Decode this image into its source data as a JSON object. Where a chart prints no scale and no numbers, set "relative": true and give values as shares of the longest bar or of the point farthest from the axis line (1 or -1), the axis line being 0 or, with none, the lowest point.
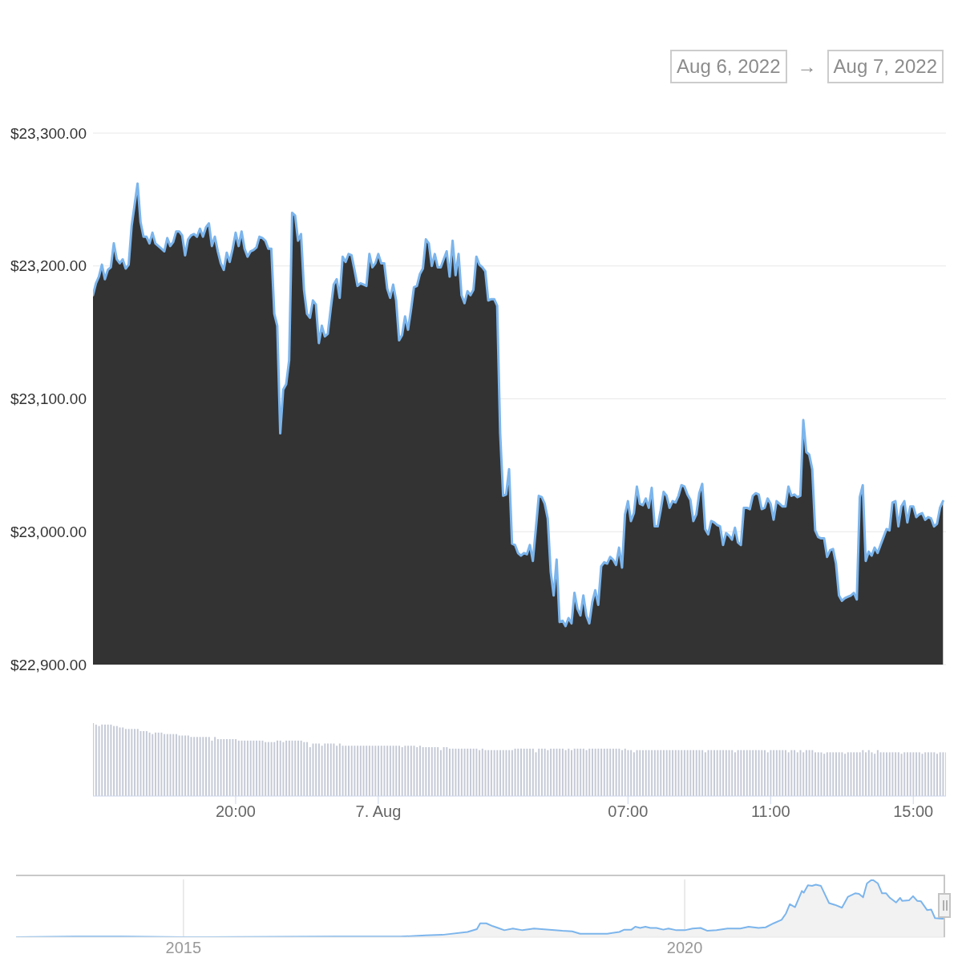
{
  "chart_data": [
    {
      "type": "area",
      "annotations": [
        "Aug 6, 2022",
        "→",
        "Aug 7, 2022"
      ],
      "x": [
        "2022-08-06T16:00",
        "2022-08-06T16:05",
        "2022-08-06T16:10",
        "2022-08-06T16:15",
        "2022-08-06T16:20",
        "2022-08-06T16:25",
        "2022-08-06T16:30",
        "2022-08-06T16:35",
        "2022-08-06T16:40",
        "2022-08-06T16:45",
        "2022-08-06T16:50",
        "2022-08-06T16:55",
        "2022-08-06T17:00",
        "2022-08-06T17:05",
        "2022-08-06T17:10",
        "2022-08-06T17:15",
        "2022-08-06T17:20",
        "2022-08-06T17:25",
        "2022-08-06T17:30",
        "2022-08-06T17:35",
        "2022-08-06T17:40",
        "2022-08-06T17:45",
        "2022-08-06T17:50",
        "2022-08-06T17:55",
        "2022-08-06T18:00",
        "2022-08-06T18:05",
        "2022-08-06T18:10",
        "2022-08-06T18:15",
        "2022-08-06T18:20",
        "2022-08-06T18:25",
        "2022-08-06T18:30",
        "2022-08-06T18:35",
        "2022-08-06T18:40",
        "2022-08-06T18:45",
        "2022-08-06T18:50",
        "2022-08-06T18:55",
        "2022-08-06T19:00",
        "2022-08-06T19:05",
        "2022-08-06T19:10",
        "2022-08-06T19:15",
        "2022-08-06T19:20",
        "2022-08-06T19:25",
        "2022-08-06T19:30",
        "2022-08-06T19:35",
        "2022-08-06T19:40",
        "2022-08-06T19:45",
        "2022-08-06T19:50",
        "2022-08-06T19:55",
        "2022-08-06T20:00",
        "2022-08-06T20:05",
        "2022-08-06T20:10",
        "2022-08-06T20:15",
        "2022-08-06T20:20",
        "2022-08-06T20:25",
        "2022-08-06T20:30",
        "2022-08-06T20:35",
        "2022-08-06T20:40",
        "2022-08-06T20:45",
        "2022-08-06T20:50",
        "2022-08-06T20:55",
        "2022-08-06T21:00",
        "2022-08-06T21:05",
        "2022-08-06T21:10",
        "2022-08-06T21:15",
        "2022-08-06T21:20",
        "2022-08-06T21:25",
        "2022-08-06T21:30",
        "2022-08-06T21:35",
        "2022-08-06T21:40",
        "2022-08-06T21:45",
        "2022-08-06T21:50",
        "2022-08-06T21:55",
        "2022-08-06T22:00",
        "2022-08-06T22:05",
        "2022-08-06T22:10",
        "2022-08-06T22:15",
        "2022-08-06T22:20",
        "2022-08-06T22:25",
        "2022-08-06T22:30",
        "2022-08-06T22:35",
        "2022-08-06T22:40",
        "2022-08-06T22:45",
        "2022-08-06T22:50",
        "2022-08-06T22:55",
        "2022-08-06T23:00",
        "2022-08-06T23:05",
        "2022-08-06T23:10",
        "2022-08-06T23:15",
        "2022-08-06T23:20",
        "2022-08-06T23:25",
        "2022-08-06T23:30",
        "2022-08-06T23:35",
        "2022-08-06T23:40",
        "2022-08-06T23:45",
        "2022-08-06T23:50",
        "2022-08-06T23:55",
        "2022-08-07T00:00",
        "2022-08-07T00:05",
        "2022-08-07T00:10",
        "2022-08-07T00:15",
        "2022-08-07T00:20",
        "2022-08-07T00:25",
        "2022-08-07T00:30",
        "2022-08-07T00:35",
        "2022-08-07T00:40",
        "2022-08-07T00:45",
        "2022-08-07T00:50",
        "2022-08-07T00:55",
        "2022-08-07T01:00",
        "2022-08-07T01:05",
        "2022-08-07T01:10",
        "2022-08-07T01:15",
        "2022-08-07T01:20",
        "2022-08-07T01:25",
        "2022-08-07T01:30",
        "2022-08-07T01:35",
        "2022-08-07T01:40",
        "2022-08-07T01:45",
        "2022-08-07T01:50",
        "2022-08-07T01:55",
        "2022-08-07T02:00",
        "2022-08-07T02:05",
        "2022-08-07T02:10",
        "2022-08-07T02:15",
        "2022-08-07T02:20",
        "2022-08-07T02:25",
        "2022-08-07T02:30",
        "2022-08-07T02:35",
        "2022-08-07T02:40",
        "2022-08-07T02:45",
        "2022-08-07T02:50",
        "2022-08-07T02:55",
        "2022-08-07T03:00",
        "2022-08-07T03:05",
        "2022-08-07T03:10",
        "2022-08-07T03:15",
        "2022-08-07T03:20",
        "2022-08-07T03:25",
        "2022-08-07T03:30",
        "2022-08-07T03:35",
        "2022-08-07T03:40",
        "2022-08-07T03:45",
        "2022-08-07T03:50",
        "2022-08-07T03:55",
        "2022-08-07T04:00",
        "2022-08-07T04:05",
        "2022-08-07T04:10",
        "2022-08-07T04:15",
        "2022-08-07T04:20",
        "2022-08-07T04:25",
        "2022-08-07T04:30",
        "2022-08-07T04:35",
        "2022-08-07T04:40",
        "2022-08-07T04:45",
        "2022-08-07T04:50",
        "2022-08-07T04:55",
        "2022-08-07T05:00",
        "2022-08-07T05:05",
        "2022-08-07T05:10",
        "2022-08-07T05:15",
        "2022-08-07T05:20",
        "2022-08-07T05:25",
        "2022-08-07T05:30",
        "2022-08-07T05:35",
        "2022-08-07T05:40",
        "2022-08-07T05:45",
        "2022-08-07T05:50",
        "2022-08-07T05:55",
        "2022-08-07T06:00",
        "2022-08-07T06:05",
        "2022-08-07T06:10",
        "2022-08-07T06:15",
        "2022-08-07T06:20",
        "2022-08-07T06:25",
        "2022-08-07T06:30",
        "2022-08-07T06:35",
        "2022-08-07T06:40",
        "2022-08-07T06:45",
        "2022-08-07T06:50",
        "2022-08-07T06:55",
        "2022-08-07T07:00",
        "2022-08-07T07:05",
        "2022-08-07T07:10",
        "2022-08-07T07:15",
        "2022-08-07T07:20",
        "2022-08-07T07:25",
        "2022-08-07T07:30",
        "2022-08-07T07:35",
        "2022-08-07T07:40",
        "2022-08-07T07:45",
        "2022-08-07T07:50",
        "2022-08-07T07:55",
        "2022-08-07T08:00",
        "2022-08-07T08:05",
        "2022-08-07T08:10",
        "2022-08-07T08:15",
        "2022-08-07T08:20",
        "2022-08-07T08:25",
        "2022-08-07T08:30",
        "2022-08-07T08:35",
        "2022-08-07T08:40",
        "2022-08-07T08:45",
        "2022-08-07T08:50",
        "2022-08-07T08:55",
        "2022-08-07T09:00",
        "2022-08-07T09:05",
        "2022-08-07T09:10",
        "2022-08-07T09:15",
        "2022-08-07T09:20",
        "2022-08-07T09:25",
        "2022-08-07T09:30",
        "2022-08-07T09:35",
        "2022-08-07T09:40",
        "2022-08-07T09:45",
        "2022-08-07T09:50",
        "2022-08-07T09:55",
        "2022-08-07T10:00",
        "2022-08-07T10:05",
        "2022-08-07T10:10",
        "2022-08-07T10:15",
        "2022-08-07T10:20",
        "2022-08-07T10:25",
        "2022-08-07T10:30",
        "2022-08-07T10:35",
        "2022-08-07T10:40",
        "2022-08-07T10:45",
        "2022-08-07T10:50",
        "2022-08-07T10:55",
        "2022-08-07T11:00",
        "2022-08-07T11:05",
        "2022-08-07T11:10",
        "2022-08-07T11:15",
        "2022-08-07T11:20",
        "2022-08-07T11:25",
        "2022-08-07T11:30",
        "2022-08-07T11:35",
        "2022-08-07T11:40",
        "2022-08-07T11:45",
        "2022-08-07T11:50",
        "2022-08-07T11:55",
        "2022-08-07T12:00",
        "2022-08-07T12:05",
        "2022-08-07T12:10",
        "2022-08-07T12:15",
        "2022-08-07T12:20",
        "2022-08-07T12:25",
        "2022-08-07T12:30",
        "2022-08-07T12:35",
        "2022-08-07T12:40",
        "2022-08-07T12:45",
        "2022-08-07T12:50",
        "2022-08-07T12:55",
        "2022-08-07T13:00",
        "2022-08-07T13:05",
        "2022-08-07T13:10",
        "2022-08-07T13:15",
        "2022-08-07T13:20",
        "2022-08-07T13:25",
        "2022-08-07T13:30",
        "2022-08-07T13:35",
        "2022-08-07T13:40",
        "2022-08-07T13:45",
        "2022-08-07T13:50",
        "2022-08-07T13:55",
        "2022-08-07T14:00",
        "2022-08-07T14:05",
        "2022-08-07T14:10",
        "2022-08-07T14:15",
        "2022-08-07T14:20",
        "2022-08-07T14:25",
        "2022-08-07T14:30",
        "2022-08-07T14:35",
        "2022-08-07T14:40",
        "2022-08-07T14:45",
        "2022-08-07T14:50",
        "2022-08-07T14:55",
        "2022-08-07T15:00",
        "2022-08-07T15:05",
        "2022-08-07T15:10",
        "2022-08-07T15:15",
        "2022-08-07T15:20",
        "2022-08-07T15:25",
        "2022-08-07T15:30",
        "2022-08-07T15:35",
        "2022-08-07T15:40",
        "2022-08-07T15:45",
        "2022-08-07T15:50"
      ],
      "values": [
        23178,
        23187,
        23192,
        23201,
        23190,
        23197,
        23199,
        23217,
        23205,
        23202,
        23205,
        23198,
        23201,
        23230,
        23246,
        23262,
        23233,
        23222,
        23222,
        23217,
        23225,
        23217,
        23215,
        23213,
        23211,
        23221,
        23215,
        23218,
        23226,
        23226,
        23223,
        23208,
        23220,
        23223,
        23224,
        23222,
        23228,
        23222,
        23229,
        23232,
        23215,
        23222,
        23211,
        23202,
        23197,
        23210,
        23203,
        23213,
        23225,
        23215,
        23226,
        23213,
        23207,
        23211,
        23212,
        23214,
        23222,
        23221,
        23219,
        23213,
        23213,
        23164,
        23155,
        23074,
        23107,
        23111,
        23129,
        23240,
        23238,
        23219,
        23224,
        23182,
        23164,
        23161,
        23174,
        23171,
        23142,
        23155,
        23147,
        23149,
        23168,
        23186,
        23190,
        23176,
        23207,
        23203,
        23209,
        23208,
        23197,
        23185,
        23187,
        23186,
        23185,
        23209,
        23199,
        23202,
        23209,
        23202,
        23202,
        23183,
        23176,
        23186,
        23174,
        23144,
        23148,
        23162,
        23152,
        23167,
        23184,
        23185,
        23194,
        23198,
        23220,
        23217,
        23200,
        23209,
        23199,
        23199,
        23205,
        23211,
        23192,
        23219,
        23193,
        23209,
        23178,
        23172,
        23181,
        23178,
        23182,
        23207,
        23201,
        23199,
        23196,
        23174,
        23175,
        23175,
        23170,
        23074,
        23027,
        23028,
        23047,
        22991,
        22990,
        22984,
        22982,
        22984,
        22983,
        22990,
        22978,
        23002,
        23027,
        23026,
        23021,
        23010,
        22970,
        22952,
        22979,
        22932,
        22933,
        22929,
        22935,
        22931,
        22954,
        22942,
        22937,
        22952,
        22937,
        22931,
        22947,
        22956,
        22945,
        22974,
        22977,
        22976,
        22981,
        22979,
        22975,
        22988,
        22973,
        23013,
        23023,
        23008,
        23014,
        23034,
        23021,
        23020,
        23025,
        23018,
        23033,
        23004,
        23004,
        23016,
        23030,
        23027,
        23018,
        23023,
        23022,
        23027,
        23035,
        23034,
        23028,
        23024,
        23008,
        23013,
        23029,
        23036,
        23002,
        22998,
        23008,
        23007,
        23005,
        23004,
        22990,
        22999,
        22997,
        22994,
        23003,
        22992,
        22990,
        23018,
        23018,
        23017,
        23027,
        23029,
        23028,
        23017,
        23018,
        23025,
        23021,
        23009,
        23023,
        23021,
        23019,
        23019,
        23034,
        23027,
        23028,
        23026,
        23027,
        23084,
        23060,
        23058,
        23047,
        23001,
        22996,
        22995,
        22995,
        22981,
        22986,
        22987,
        22976,
        22952,
        22948,
        22950,
        22951,
        22952,
        22954,
        22949,
        23026,
        23035,
        22978,
        22985,
        22982,
        22988,
        22984,
        22990,
        22996,
        23002,
        23001,
        23022,
        23023,
        23004,
        23019,
        23023,
        23007,
        23019,
        23019,
        23011,
        23013,
        23014,
        23009,
        23011,
        23010,
        23004,
        23006,
        23018,
        23023
      ],
      "color": "#7cb5ec",
      "xlim": [
        "2022-08-06T16:00",
        "2022-08-07T15:55"
      ],
      "ylim": [
        22900,
        23300
      ],
      "yticks": [
        {
          "value": 22900,
          "label": "$22,900.00"
        },
        {
          "value": 23000,
          "label": "$23,000.00"
        },
        {
          "value": 23100,
          "label": "$23,100.00"
        },
        {
          "value": 23200,
          "label": "$23,200.00"
        },
        {
          "value": 23300,
          "label": "$23,300.00"
        }
      ],
      "grid": "y",
      "tick_labels": "y"
    },
    {
      "type": "bar",
      "relative": true,
      "x": [
        "2022-08-06T16:00",
        "2022-08-06T16:05",
        "2022-08-06T16:10",
        "2022-08-06T16:15",
        "2022-08-06T16:20",
        "2022-08-06T16:25",
        "2022-08-06T16:30",
        "2022-08-06T16:35",
        "2022-08-06T16:40",
        "2022-08-06T16:45",
        "2022-08-06T16:50",
        "2022-08-06T16:55",
        "2022-08-06T17:00",
        "2022-08-06T17:05",
        "2022-08-06T17:10",
        "2022-08-06T17:15",
        "2022-08-06T17:20",
        "2022-08-06T17:25",
        "2022-08-06T17:30",
        "2022-08-06T17:35",
        "2022-08-06T17:40",
        "2022-08-06T17:45",
        "2022-08-06T17:50",
        "2022-08-06T17:55",
        "2022-08-06T18:00",
        "2022-08-06T18:05",
        "2022-08-06T18:10",
        "2022-08-06T18:15",
        "2022-08-06T18:20",
        "2022-08-06T18:25",
        "2022-08-06T18:30",
        "2022-08-06T18:35",
        "2022-08-06T18:40",
        "2022-08-06T18:45",
        "2022-08-06T18:50",
        "2022-08-06T18:55",
        "2022-08-06T19:00",
        "2022-08-06T19:05",
        "2022-08-06T19:10",
        "2022-08-06T19:15",
        "2022-08-06T19:20",
        "2022-08-06T19:25",
        "2022-08-06T19:30",
        "2022-08-06T19:35",
        "2022-08-06T19:40",
        "2022-08-06T19:45",
        "2022-08-06T19:50",
        "2022-08-06T19:55",
        "2022-08-06T20:00",
        "2022-08-06T20:05",
        "2022-08-06T20:10",
        "2022-08-06T20:15",
        "2022-08-06T20:20",
        "2022-08-06T20:25",
        "2022-08-06T20:30",
        "2022-08-06T20:35",
        "2022-08-06T20:40",
        "2022-08-06T20:45",
        "2022-08-06T20:50",
        "2022-08-06T20:55",
        "2022-08-06T21:00",
        "2022-08-06T21:05",
        "2022-08-06T21:10",
        "2022-08-06T21:15",
        "2022-08-06T21:20",
        "2022-08-06T21:25",
        "2022-08-06T21:30",
        "2022-08-06T21:35",
        "2022-08-06T21:40",
        "2022-08-06T21:45",
        "2022-08-06T21:50",
        "2022-08-06T21:55",
        "2022-08-06T22:00",
        "2022-08-06T22:05",
        "2022-08-06T22:10",
        "2022-08-06T22:15",
        "2022-08-06T22:20",
        "2022-08-06T22:25",
        "2022-08-06T22:30",
        "2022-08-06T22:35",
        "2022-08-06T22:40",
        "2022-08-06T22:45",
        "2022-08-06T22:50",
        "2022-08-06T22:55",
        "2022-08-06T23:00",
        "2022-08-06T23:05",
        "2022-08-06T23:10",
        "2022-08-06T23:15",
        "2022-08-06T23:20",
        "2022-08-06T23:25",
        "2022-08-06T23:30",
        "2022-08-06T23:35",
        "2022-08-06T23:40",
        "2022-08-06T23:45",
        "2022-08-06T23:50",
        "2022-08-06T23:55",
        "2022-08-07T00:00",
        "2022-08-07T00:05",
        "2022-08-07T00:10",
        "2022-08-07T00:15",
        "2022-08-07T00:20",
        "2022-08-07T00:25",
        "2022-08-07T00:30",
        "2022-08-07T00:35",
        "2022-08-07T00:40",
        "2022-08-07T00:45",
        "2022-08-07T00:50",
        "2022-08-07T00:55",
        "2022-08-07T01:00",
        "2022-08-07T01:05",
        "2022-08-07T01:10",
        "2022-08-07T01:15",
        "2022-08-07T01:20",
        "2022-08-07T01:25",
        "2022-08-07T01:30",
        "2022-08-07T01:35",
        "2022-08-07T01:40",
        "2022-08-07T01:45",
        "2022-08-07T01:50",
        "2022-08-07T01:55",
        "2022-08-07T02:00",
        "2022-08-07T02:05",
        "2022-08-07T02:10",
        "2022-08-07T02:15",
        "2022-08-07T02:20",
        "2022-08-07T02:25",
        "2022-08-07T02:30",
        "2022-08-07T02:35",
        "2022-08-07T02:40",
        "2022-08-07T02:45",
        "2022-08-07T02:50",
        "2022-08-07T02:55",
        "2022-08-07T03:00",
        "2022-08-07T03:05",
        "2022-08-07T03:10",
        "2022-08-07T03:15",
        "2022-08-07T03:20",
        "2022-08-07T03:25",
        "2022-08-07T03:30",
        "2022-08-07T03:35",
        "2022-08-07T03:40",
        "2022-08-07T03:45",
        "2022-08-07T03:50",
        "2022-08-07T03:55",
        "2022-08-07T04:00",
        "2022-08-07T04:05",
        "2022-08-07T04:10",
        "2022-08-07T04:15",
        "2022-08-07T04:20",
        "2022-08-07T04:25",
        "2022-08-07T04:30",
        "2022-08-07T04:35",
        "2022-08-07T04:40",
        "2022-08-07T04:45",
        "2022-08-07T04:50",
        "2022-08-07T04:55",
        "2022-08-07T05:00",
        "2022-08-07T05:05",
        "2022-08-07T05:10",
        "2022-08-07T05:15",
        "2022-08-07T05:20",
        "2022-08-07T05:25",
        "2022-08-07T05:30",
        "2022-08-07T05:35",
        "2022-08-07T05:40",
        "2022-08-07T05:45",
        "2022-08-07T05:50",
        "2022-08-07T05:55",
        "2022-08-07T06:00",
        "2022-08-07T06:05",
        "2022-08-07T06:10",
        "2022-08-07T06:15",
        "2022-08-07T06:20",
        "2022-08-07T06:25",
        "2022-08-07T06:30",
        "2022-08-07T06:35",
        "2022-08-07T06:40",
        "2022-08-07T06:45",
        "2022-08-07T06:50",
        "2022-08-07T06:55",
        "2022-08-07T07:00",
        "2022-08-07T07:05",
        "2022-08-07T07:10",
        "2022-08-07T07:15",
        "2022-08-07T07:20",
        "2022-08-07T07:25",
        "2022-08-07T07:30",
        "2022-08-07T07:35",
        "2022-08-07T07:40",
        "2022-08-07T07:45",
        "2022-08-07T07:50",
        "2022-08-07T07:55",
        "2022-08-07T08:00",
        "2022-08-07T08:05",
        "2022-08-07T08:10",
        "2022-08-07T08:15",
        "2022-08-07T08:20",
        "2022-08-07T08:25",
        "2022-08-07T08:30",
        "2022-08-07T08:35",
        "2022-08-07T08:40",
        "2022-08-07T08:45",
        "2022-08-07T08:50",
        "2022-08-07T08:55",
        "2022-08-07T09:00",
        "2022-08-07T09:05",
        "2022-08-07T09:10",
        "2022-08-07T09:15",
        "2022-08-07T09:20",
        "2022-08-07T09:25",
        "2022-08-07T09:30",
        "2022-08-07T09:35",
        "2022-08-07T09:40",
        "2022-08-07T09:45",
        "2022-08-07T09:50",
        "2022-08-07T09:55",
        "2022-08-07T10:00",
        "2022-08-07T10:05",
        "2022-08-07T10:10",
        "2022-08-07T10:15",
        "2022-08-07T10:20",
        "2022-08-07T10:25",
        "2022-08-07T10:30",
        "2022-08-07T10:35",
        "2022-08-07T10:40",
        "2022-08-07T10:45",
        "2022-08-07T10:50",
        "2022-08-07T10:55",
        "2022-08-07T11:00",
        "2022-08-07T11:05",
        "2022-08-07T11:10",
        "2022-08-07T11:15",
        "2022-08-07T11:20",
        "2022-08-07T11:25",
        "2022-08-07T11:30",
        "2022-08-07T11:35",
        "2022-08-07T11:40",
        "2022-08-07T11:45",
        "2022-08-07T11:50",
        "2022-08-07T11:55",
        "2022-08-07T12:00",
        "2022-08-07T12:05",
        "2022-08-07T12:10",
        "2022-08-07T12:15",
        "2022-08-07T12:20",
        "2022-08-07T12:25",
        "2022-08-07T12:30",
        "2022-08-07T12:35",
        "2022-08-07T12:40",
        "2022-08-07T12:45",
        "2022-08-07T12:50",
        "2022-08-07T12:55",
        "2022-08-07T13:00",
        "2022-08-07T13:05",
        "2022-08-07T13:10",
        "2022-08-07T13:15",
        "2022-08-07T13:20",
        "2022-08-07T13:25",
        "2022-08-07T13:30",
        "2022-08-07T13:35",
        "2022-08-07T13:40",
        "2022-08-07T13:45",
        "2022-08-07T13:50",
        "2022-08-07T13:55",
        "2022-08-07T14:00",
        "2022-08-07T14:05",
        "2022-08-07T14:10",
        "2022-08-07T14:15",
        "2022-08-07T14:20",
        "2022-08-07T14:25",
        "2022-08-07T14:30",
        "2022-08-07T14:35",
        "2022-08-07T14:40",
        "2022-08-07T14:45",
        "2022-08-07T14:50",
        "2022-08-07T14:55",
        "2022-08-07T15:00",
        "2022-08-07T15:05",
        "2022-08-07T15:10",
        "2022-08-07T15:15",
        "2022-08-07T15:20",
        "2022-08-07T15:25",
        "2022-08-07T15:30",
        "2022-08-07T15:35",
        "2022-08-07T15:40",
        "2022-08-07T15:45",
        "2022-08-07T15:50",
        "2022-08-07T15:55"
      ],
      "values": [
        1.0,
        0.98,
        0.96,
        0.98,
        0.98,
        0.98,
        0.98,
        0.96,
        0.96,
        0.94,
        0.94,
        0.92,
        0.92,
        0.92,
        0.92,
        0.92,
        0.89,
        0.89,
        0.89,
        0.87,
        0.85,
        0.87,
        0.87,
        0.87,
        0.85,
        0.85,
        0.85,
        0.85,
        0.85,
        0.83,
        0.83,
        0.83,
        0.83,
        0.81,
        0.81,
        0.81,
        0.81,
        0.81,
        0.81,
        0.81,
        0.76,
        0.81,
        0.78,
        0.78,
        0.78,
        0.78,
        0.78,
        0.78,
        0.78,
        0.76,
        0.76,
        0.76,
        0.76,
        0.76,
        0.76,
        0.76,
        0.76,
        0.76,
        0.74,
        0.74,
        0.74,
        0.74,
        0.76,
        0.76,
        0.74,
        0.76,
        0.76,
        0.76,
        0.76,
        0.76,
        0.76,
        0.74,
        0.74,
        0.67,
        0.72,
        0.72,
        0.72,
        0.69,
        0.72,
        0.72,
        0.72,
        0.72,
        0.69,
        0.72,
        0.69,
        0.69,
        0.69,
        0.69,
        0.69,
        0.69,
        0.69,
        0.69,
        0.69,
        0.69,
        0.69,
        0.69,
        0.69,
        0.69,
        0.69,
        0.69,
        0.69,
        0.69,
        0.69,
        0.69,
        0.67,
        0.69,
        0.69,
        0.69,
        0.69,
        0.67,
        0.69,
        0.67,
        0.67,
        0.67,
        0.67,
        0.67,
        0.67,
        0.63,
        0.67,
        0.67,
        0.65,
        0.65,
        0.65,
        0.65,
        0.65,
        0.65,
        0.65,
        0.65,
        0.65,
        0.65,
        0.63,
        0.65,
        0.63,
        0.63,
        0.63,
        0.63,
        0.63,
        0.63,
        0.63,
        0.63,
        0.63,
        0.63,
        0.65,
        0.65,
        0.65,
        0.65,
        0.65,
        0.65,
        0.65,
        0.6,
        0.65,
        0.65,
        0.65,
        0.63,
        0.65,
        0.65,
        0.65,
        0.65,
        0.65,
        0.63,
        0.65,
        0.63,
        0.65,
        0.65,
        0.65,
        0.65,
        0.63,
        0.65,
        0.65,
        0.65,
        0.65,
        0.65,
        0.65,
        0.65,
        0.65,
        0.65,
        0.65,
        0.65,
        0.63,
        0.65,
        0.63,
        0.63,
        0.6,
        0.63,
        0.63,
        0.63,
        0.63,
        0.63,
        0.63,
        0.63,
        0.63,
        0.63,
        0.63,
        0.63,
        0.63,
        0.63,
        0.63,
        0.63,
        0.63,
        0.63,
        0.63,
        0.63,
        0.63,
        0.63,
        0.63,
        0.63,
        0.6,
        0.63,
        0.63,
        0.63,
        0.63,
        0.63,
        0.63,
        0.63,
        0.63,
        0.63,
        0.6,
        0.63,
        0.63,
        0.63,
        0.63,
        0.63,
        0.63,
        0.63,
        0.63,
        0.63,
        0.63,
        0.6,
        0.63,
        0.63,
        0.63,
        0.63,
        0.63,
        0.63,
        0.6,
        0.63,
        0.63,
        0.6,
        0.63,
        0.6,
        0.63,
        0.63,
        0.63,
        0.6,
        0.6,
        0.6,
        0.58,
        0.6,
        0.6,
        0.6,
        0.6,
        0.6,
        0.6,
        0.58,
        0.6,
        0.6,
        0.6,
        0.6,
        0.6,
        0.63,
        0.6,
        0.63,
        0.6,
        0.58,
        0.63,
        0.6,
        0.6,
        0.6,
        0.6,
        0.6,
        0.6,
        0.6,
        0.58,
        0.6,
        0.6,
        0.6,
        0.6,
        0.6,
        0.6,
        0.58,
        0.6,
        0.6,
        0.6,
        0.6,
        0.58,
        0.6,
        0.6,
        0.6
      ],
      "color": "#c5cad6",
      "xlim": [
        "2022-08-06T16:00",
        "2022-08-07T15:55"
      ],
      "xticks": [
        {
          "value": "2022-08-06T20:00",
          "label": "20:00"
        },
        {
          "value": "2022-08-07T00:00",
          "label": "7. Aug"
        },
        {
          "value": "2022-08-07T07:00",
          "label": "07:00"
        },
        {
          "value": "2022-08-07T11:00",
          "label": "11:00"
        },
        {
          "value": "2022-08-07T15:00",
          "label": "15:00"
        }
      ],
      "tick_labels": "x"
    },
    {
      "type": "area",
      "relative": true,
      "x": [
        "2013-05",
        "2013-12",
        "2014-06",
        "2015-01",
        "2016-07",
        "2017-03",
        "2017-06",
        "2017-08",
        "2017-11",
        "2017-12-05",
        "2017-12-17",
        "2018-01-08",
        "2018-02-01",
        "2018-02-20",
        "2018-03-15",
        "2018-04-15",
        "2018-05-20",
        "2018-07-01",
        "2018-10-12",
        "2018-11-17",
        "2018-12-16",
        "2019-03-25",
        "2019-05-08",
        "2019-05-26",
        "2019-06-21",
        "2019-07-05",
        "2019-07-23",
        "2019-08-11",
        "2019-08-29",
        "2019-09-20",
        "2019-10-15",
        "2019-11-03",
        "2019-12-02",
        "2020-01-01",
        "2020-01-30",
        "2020-02-28",
        "2020-03-24",
        "2020-04-26",
        "2020-06-05",
        "2020-07-22",
        "2020-08-21",
        "2020-09-26",
        "2020-10-22",
        "2020-11-20",
        "2020-12-19",
        "2021-01-04",
        "2021-01-18",
        "2021-02-06",
        "2021-03-03",
        "2021-03-10",
        "2021-03-25",
        "2021-04-09",
        "2021-04-23",
        "2021-05-11",
        "2021-06-10",
        "2021-07-01",
        "2021-07-27",
        "2021-08-18",
        "2021-09-13",
        "2021-09-27",
        "2021-10-12",
        "2021-10-26",
        "2021-11-14",
        "2021-12-05",
        "2021-12-20",
        "2022-01-04",
        "2022-01-18",
        "2022-02-09",
        "2022-02-24",
        "2022-03-03",
        "2022-03-29",
        "2022-04-12",
        "2022-04-27",
        "2022-05-11",
        "2022-06-02",
        "2022-06-17",
        "2022-07-01",
        "2022-07-27",
        "2022-08-07"
      ],
      "values": [
        0,
        0.01,
        0.01,
        0,
        0.01,
        0.01,
        0.03,
        0.04,
        0.09,
        0.14,
        0.24,
        0.24,
        0.19,
        0.16,
        0.12,
        0.15,
        0.12,
        0.15,
        0.11,
        0.1,
        0.06,
        0.06,
        0.09,
        0.13,
        0.13,
        0.18,
        0.16,
        0.18,
        0.16,
        0.16,
        0.13,
        0.15,
        0.12,
        0.12,
        0.15,
        0.16,
        0.11,
        0.12,
        0.15,
        0.15,
        0.18,
        0.16,
        0.17,
        0.24,
        0.3,
        0.41,
        0.57,
        0.52,
        0.8,
        0.77,
        0.9,
        0.89,
        0.91,
        0.89,
        0.59,
        0.56,
        0.51,
        0.7,
        0.76,
        0.75,
        0.69,
        0.93,
        1.0,
        0.93,
        0.76,
        0.76,
        0.68,
        0.6,
        0.68,
        0.63,
        0.64,
        0.71,
        0.63,
        0.62,
        0.47,
        0.48,
        0.33,
        0.32,
        0.32
      ],
      "color": "#7cb5ec",
      "xlim": [
        "2013-05",
        "2022-08-07"
      ],
      "xticks": [
        {
          "value": "2015",
          "label": "2015"
        },
        {
          "value": "2020",
          "label": "2020"
        }
      ],
      "grid": "x"
    }
  ]
}
